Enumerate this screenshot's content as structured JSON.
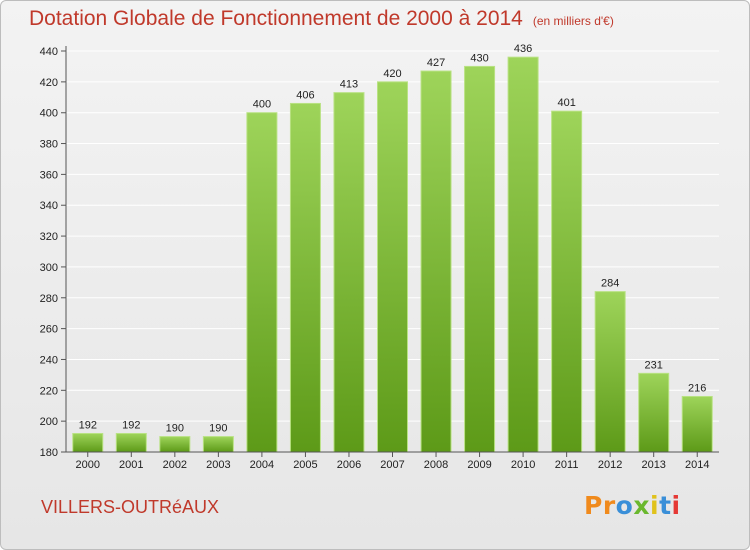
{
  "header": {
    "title": "Dotation Globale de Fonctionnement de 2000 à 2014",
    "unit": "(en milliers d'€)"
  },
  "footer": {
    "commune": "VILLERS-OUTRéAUX",
    "logo": [
      "P",
      "r",
      "o",
      "x",
      "i",
      "t",
      "i"
    ]
  },
  "colors": {
    "title": "#c0392b",
    "bar_top": "#9ed45a",
    "bar_bottom": "#5d9a18",
    "logo": [
      "#f08a1c",
      "#f08a1c",
      "#3a8fd8",
      "#6ab82e",
      "#e0c21c",
      "#3a8fd8",
      "#e53935"
    ]
  },
  "chart_data": {
    "type": "bar",
    "title": "Dotation Globale de Fonctionnement de 2000 à 2014",
    "subtitle": "(en milliers d'€)",
    "categories": [
      "2000",
      "2001",
      "2002",
      "2003",
      "2004",
      "2005",
      "2006",
      "2007",
      "2008",
      "2009",
      "2010",
      "2011",
      "2012",
      "2013",
      "2014"
    ],
    "values": [
      192,
      192,
      190,
      190,
      400,
      406,
      413,
      420,
      427,
      430,
      436,
      401,
      284,
      231,
      216
    ],
    "ylim": [
      180,
      440
    ],
    "yticks": [
      180,
      200,
      220,
      240,
      260,
      280,
      300,
      320,
      340,
      360,
      380,
      400,
      420,
      440
    ],
    "grid": true,
    "xlabel": "",
    "ylabel": ""
  }
}
